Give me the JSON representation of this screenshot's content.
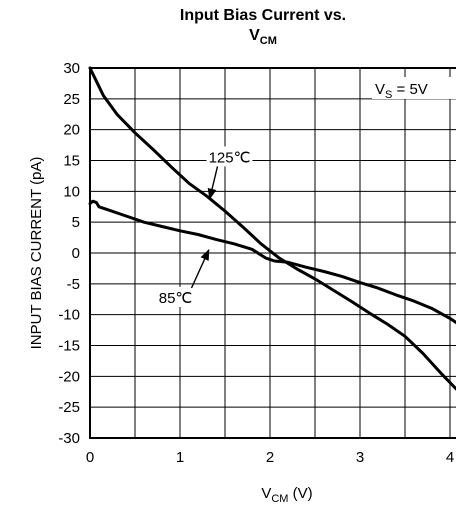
{
  "chart_data": {
    "type": "line",
    "title_line1": "Input Bias Current vs.",
    "title_line2_main": "V",
    "title_line2_sub": "CM",
    "ylabel": "INPUT BIAS CURRENT (pA)",
    "xlabel_main": "V",
    "xlabel_sub": "CM",
    "xlabel_unit": " (V)",
    "condition_main": "V",
    "condition_sub": "S",
    "condition_rest": " = 5V",
    "xlim": [
      0,
      4.1
    ],
    "ylim": [
      -30,
      30
    ],
    "x_ticks": [
      0,
      1,
      2,
      3,
      4
    ],
    "x_tick_labels": [
      "0",
      "1",
      "2",
      "3",
      "4"
    ],
    "y_ticks": [
      30,
      25,
      20,
      15,
      10,
      5,
      0,
      -5,
      -10,
      -15,
      -20,
      -25,
      -30
    ],
    "y_tick_labels": [
      "30",
      "25",
      "20",
      "15",
      "10",
      "5",
      "0",
      "-5",
      "-10",
      "-15",
      "-20",
      "-25",
      "-30"
    ],
    "x_grid": [
      0,
      0.5,
      1,
      1.5,
      2,
      2.5,
      3,
      3.5,
      4
    ],
    "y_grid": [
      30,
      25,
      20,
      15,
      10,
      5,
      0,
      -5,
      -10,
      -15,
      -20,
      -25,
      -30
    ],
    "grid": true,
    "series": [
      {
        "name": "125℃",
        "x": [
          0,
          0.05,
          0.15,
          0.3,
          0.5,
          0.7,
          0.9,
          1.1,
          1.3,
          1.5,
          1.7,
          1.9,
          2.1,
          2.3,
          2.5,
          2.7,
          2.9,
          3.1,
          3.3,
          3.5,
          3.7,
          3.9,
          4.1
        ],
        "y": [
          30,
          28.5,
          25.5,
          22.5,
          19.5,
          16.8,
          14,
          11.3,
          9.2,
          6.8,
          4.2,
          1.5,
          -0.8,
          -2.6,
          -4.2,
          -6,
          -7.8,
          -9.7,
          -11.5,
          -13.5,
          -16.3,
          -19.5,
          -22.5
        ]
      },
      {
        "name": "85℃",
        "x": [
          0,
          0.03,
          0.07,
          0.1,
          0.2,
          0.4,
          0.6,
          0.8,
          1,
          1.2,
          1.4,
          1.6,
          1.8,
          1.95,
          2.05,
          2.2,
          2.4,
          2.6,
          2.8,
          3,
          3.2,
          3.4,
          3.6,
          3.8,
          4,
          4.1
        ],
        "y": [
          8,
          8.4,
          8.2,
          7.5,
          7,
          6,
          5,
          4.3,
          3.6,
          3,
          2.2,
          1.5,
          0.6,
          -0.8,
          -1.3,
          -1.5,
          -2.3,
          -3,
          -3.8,
          -4.8,
          -5.7,
          -6.8,
          -7.8,
          -9,
          -10.6,
          -11.6
        ]
      }
    ],
    "annotations": [
      {
        "text": "125℃",
        "x": 1.55,
        "y": 15.5,
        "arrow_to": [
          1.33,
          8.8
        ]
      },
      {
        "text": "85℃",
        "x": 0.95,
        "y": -7.3,
        "arrow_to": [
          1.32,
          0.5
        ]
      }
    ]
  }
}
